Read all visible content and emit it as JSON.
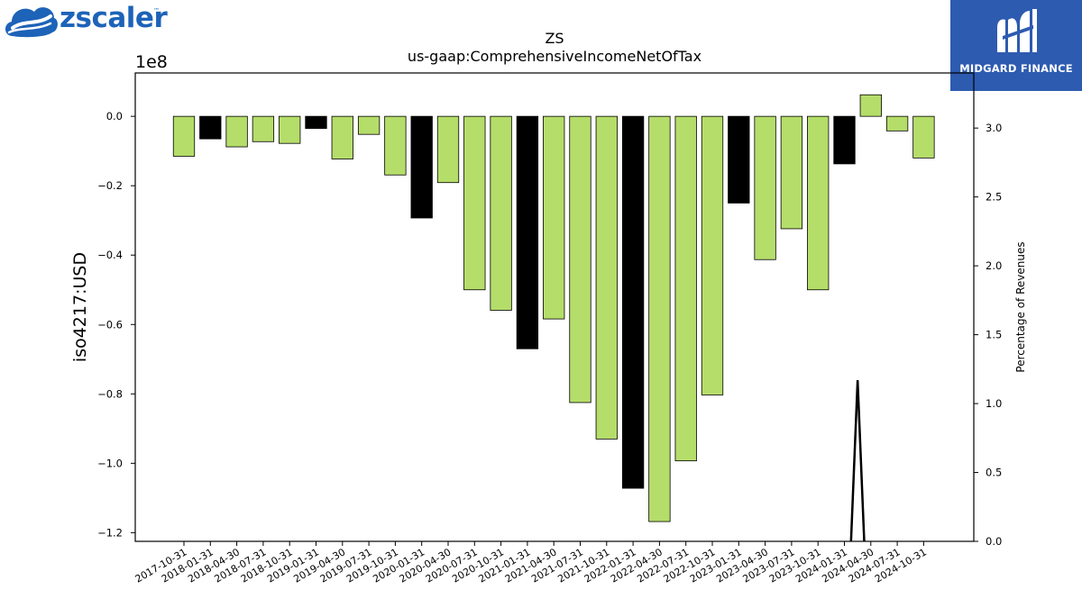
{
  "logos": {
    "left_brand": "zscaler",
    "left_brand_tm": "™",
    "right_brand": "MIDGARD FINANCE",
    "right_brand_color": "#2d5bb0",
    "left_brand_color": "#1d63b8"
  },
  "chart_data": {
    "type": "bar",
    "title": "ZS",
    "subtitle": "us-gaap:ComprehensiveIncomeNetOfTax",
    "ylabel": "iso4217:USD",
    "y_offset_label": "1e8",
    "y2label": "Percentage of Revenues",
    "ylim": [
      -122500000,
      12500000
    ],
    "y2lim": [
      0.0,
      3.4
    ],
    "yticks": [
      {
        "value": 0,
        "label": "0.0"
      },
      {
        "value": -20000000,
        "label": "−0.2"
      },
      {
        "value": -40000000,
        "label": "−0.4"
      },
      {
        "value": -60000000,
        "label": "−0.6"
      },
      {
        "value": -80000000,
        "label": "−0.8"
      },
      {
        "value": -100000000,
        "label": "−1.0"
      },
      {
        "value": -120000000,
        "label": "−1.2"
      }
    ],
    "y2ticks": [
      {
        "value": 0.0,
        "label": "0.0"
      },
      {
        "value": 0.5,
        "label": "0.5"
      },
      {
        "value": 1.0,
        "label": "1.0"
      },
      {
        "value": 1.5,
        "label": "1.5"
      },
      {
        "value": 2.0,
        "label": "2.0"
      },
      {
        "value": 2.5,
        "label": "2.5"
      },
      {
        "value": 3.0,
        "label": "3.0"
      }
    ],
    "categories": [
      "2017-10-31",
      "2018-01-31",
      "2018-04-30",
      "2018-07-31",
      "2018-10-31",
      "2019-01-31",
      "2019-04-30",
      "2019-07-31",
      "2019-10-31",
      "2020-01-31",
      "2020-04-30",
      "2020-07-31",
      "2020-10-31",
      "2021-01-31",
      "2021-04-30",
      "2021-07-31",
      "2021-10-31",
      "2022-01-31",
      "2022-04-30",
      "2022-07-31",
      "2022-10-31",
      "2023-01-31",
      "2023-04-30",
      "2023-07-31",
      "2023-10-31",
      "2024-01-31",
      "2024-04-30",
      "2024-07-31",
      "2024-10-31"
    ],
    "values": [
      -11500000,
      -6500000,
      -8800000,
      -7300000,
      -7800000,
      -3500000,
      -12300000,
      -5200000,
      -16900000,
      -29300000,
      -19100000,
      -50000000,
      -55900000,
      -67000000,
      -58400000,
      -82500000,
      -93000000,
      -107200000,
      -116800000,
      -99300000,
      -80300000,
      -25000000,
      -41300000,
      -32400000,
      -50000000,
      -13700000,
      6200000,
      -4200000,
      -12000000
    ],
    "highlight": [
      false,
      true,
      false,
      false,
      false,
      true,
      false,
      false,
      false,
      true,
      false,
      false,
      false,
      true,
      false,
      false,
      false,
      true,
      false,
      false,
      false,
      true,
      false,
      false,
      false,
      true,
      false,
      false,
      false
    ],
    "colors": {
      "bar": "#b5dd6a",
      "highlight": "#000000",
      "line": "#000000"
    },
    "line_series": {
      "name": "",
      "axis": "right",
      "points": [
        {
          "x": 25.25,
          "y": 0.0
        },
        {
          "x": 25.5,
          "y": 1.17
        },
        {
          "x": 25.75,
          "y": 0.0
        }
      ]
    },
    "grid": false,
    "legend": "none"
  }
}
